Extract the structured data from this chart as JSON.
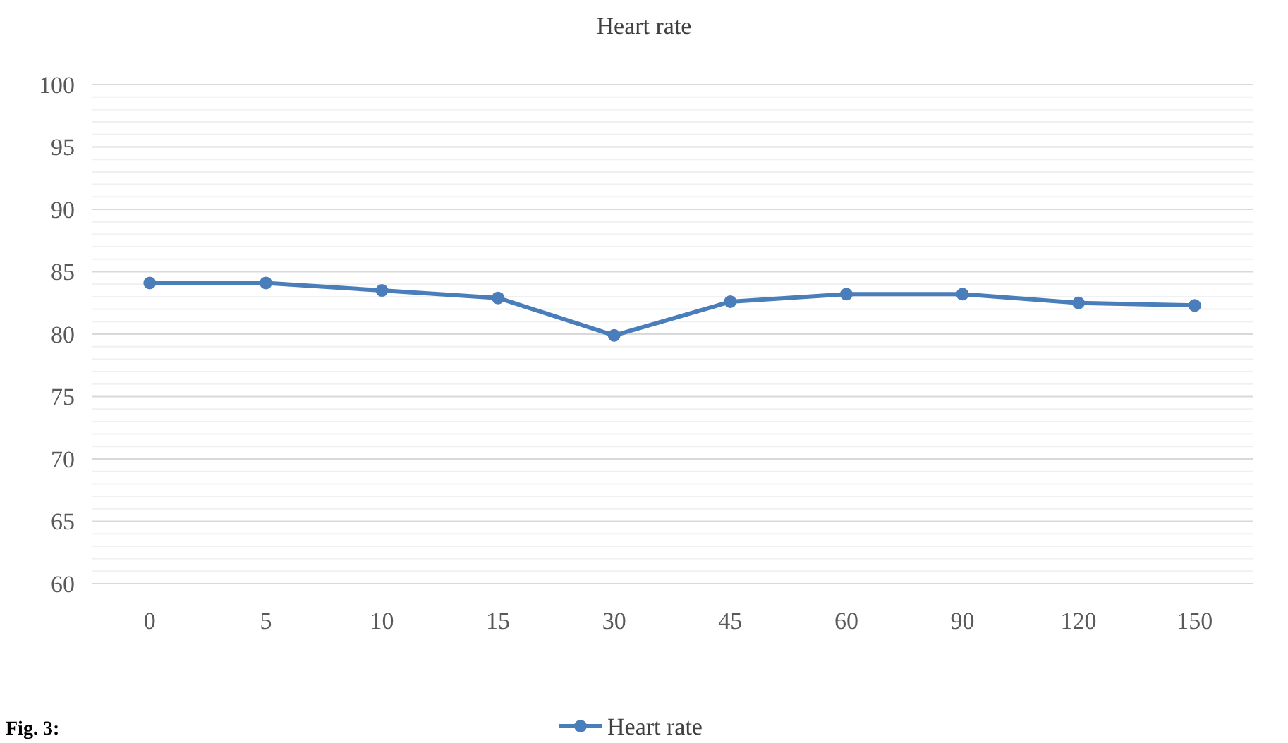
{
  "chart_data": {
    "type": "line",
    "title": "Heart rate",
    "categories": [
      "0",
      "5",
      "10",
      "15",
      "30",
      "45",
      "60",
      "90",
      "120",
      "150"
    ],
    "series": [
      {
        "name": "Heart rate",
        "color": "#4a7ebb",
        "values": [
          84.1,
          84.1,
          83.5,
          82.9,
          79.9,
          82.6,
          83.2,
          83.2,
          82.5,
          82.3
        ]
      }
    ],
    "ylim": [
      60,
      100
    ],
    "yticks": [
      60,
      65,
      70,
      75,
      80,
      85,
      90,
      95,
      100
    ],
    "grid": "y",
    "legend": "bottom",
    "marker": "circle",
    "line_style": "solid",
    "annotations": [
      "Fig. 3:"
    ]
  }
}
